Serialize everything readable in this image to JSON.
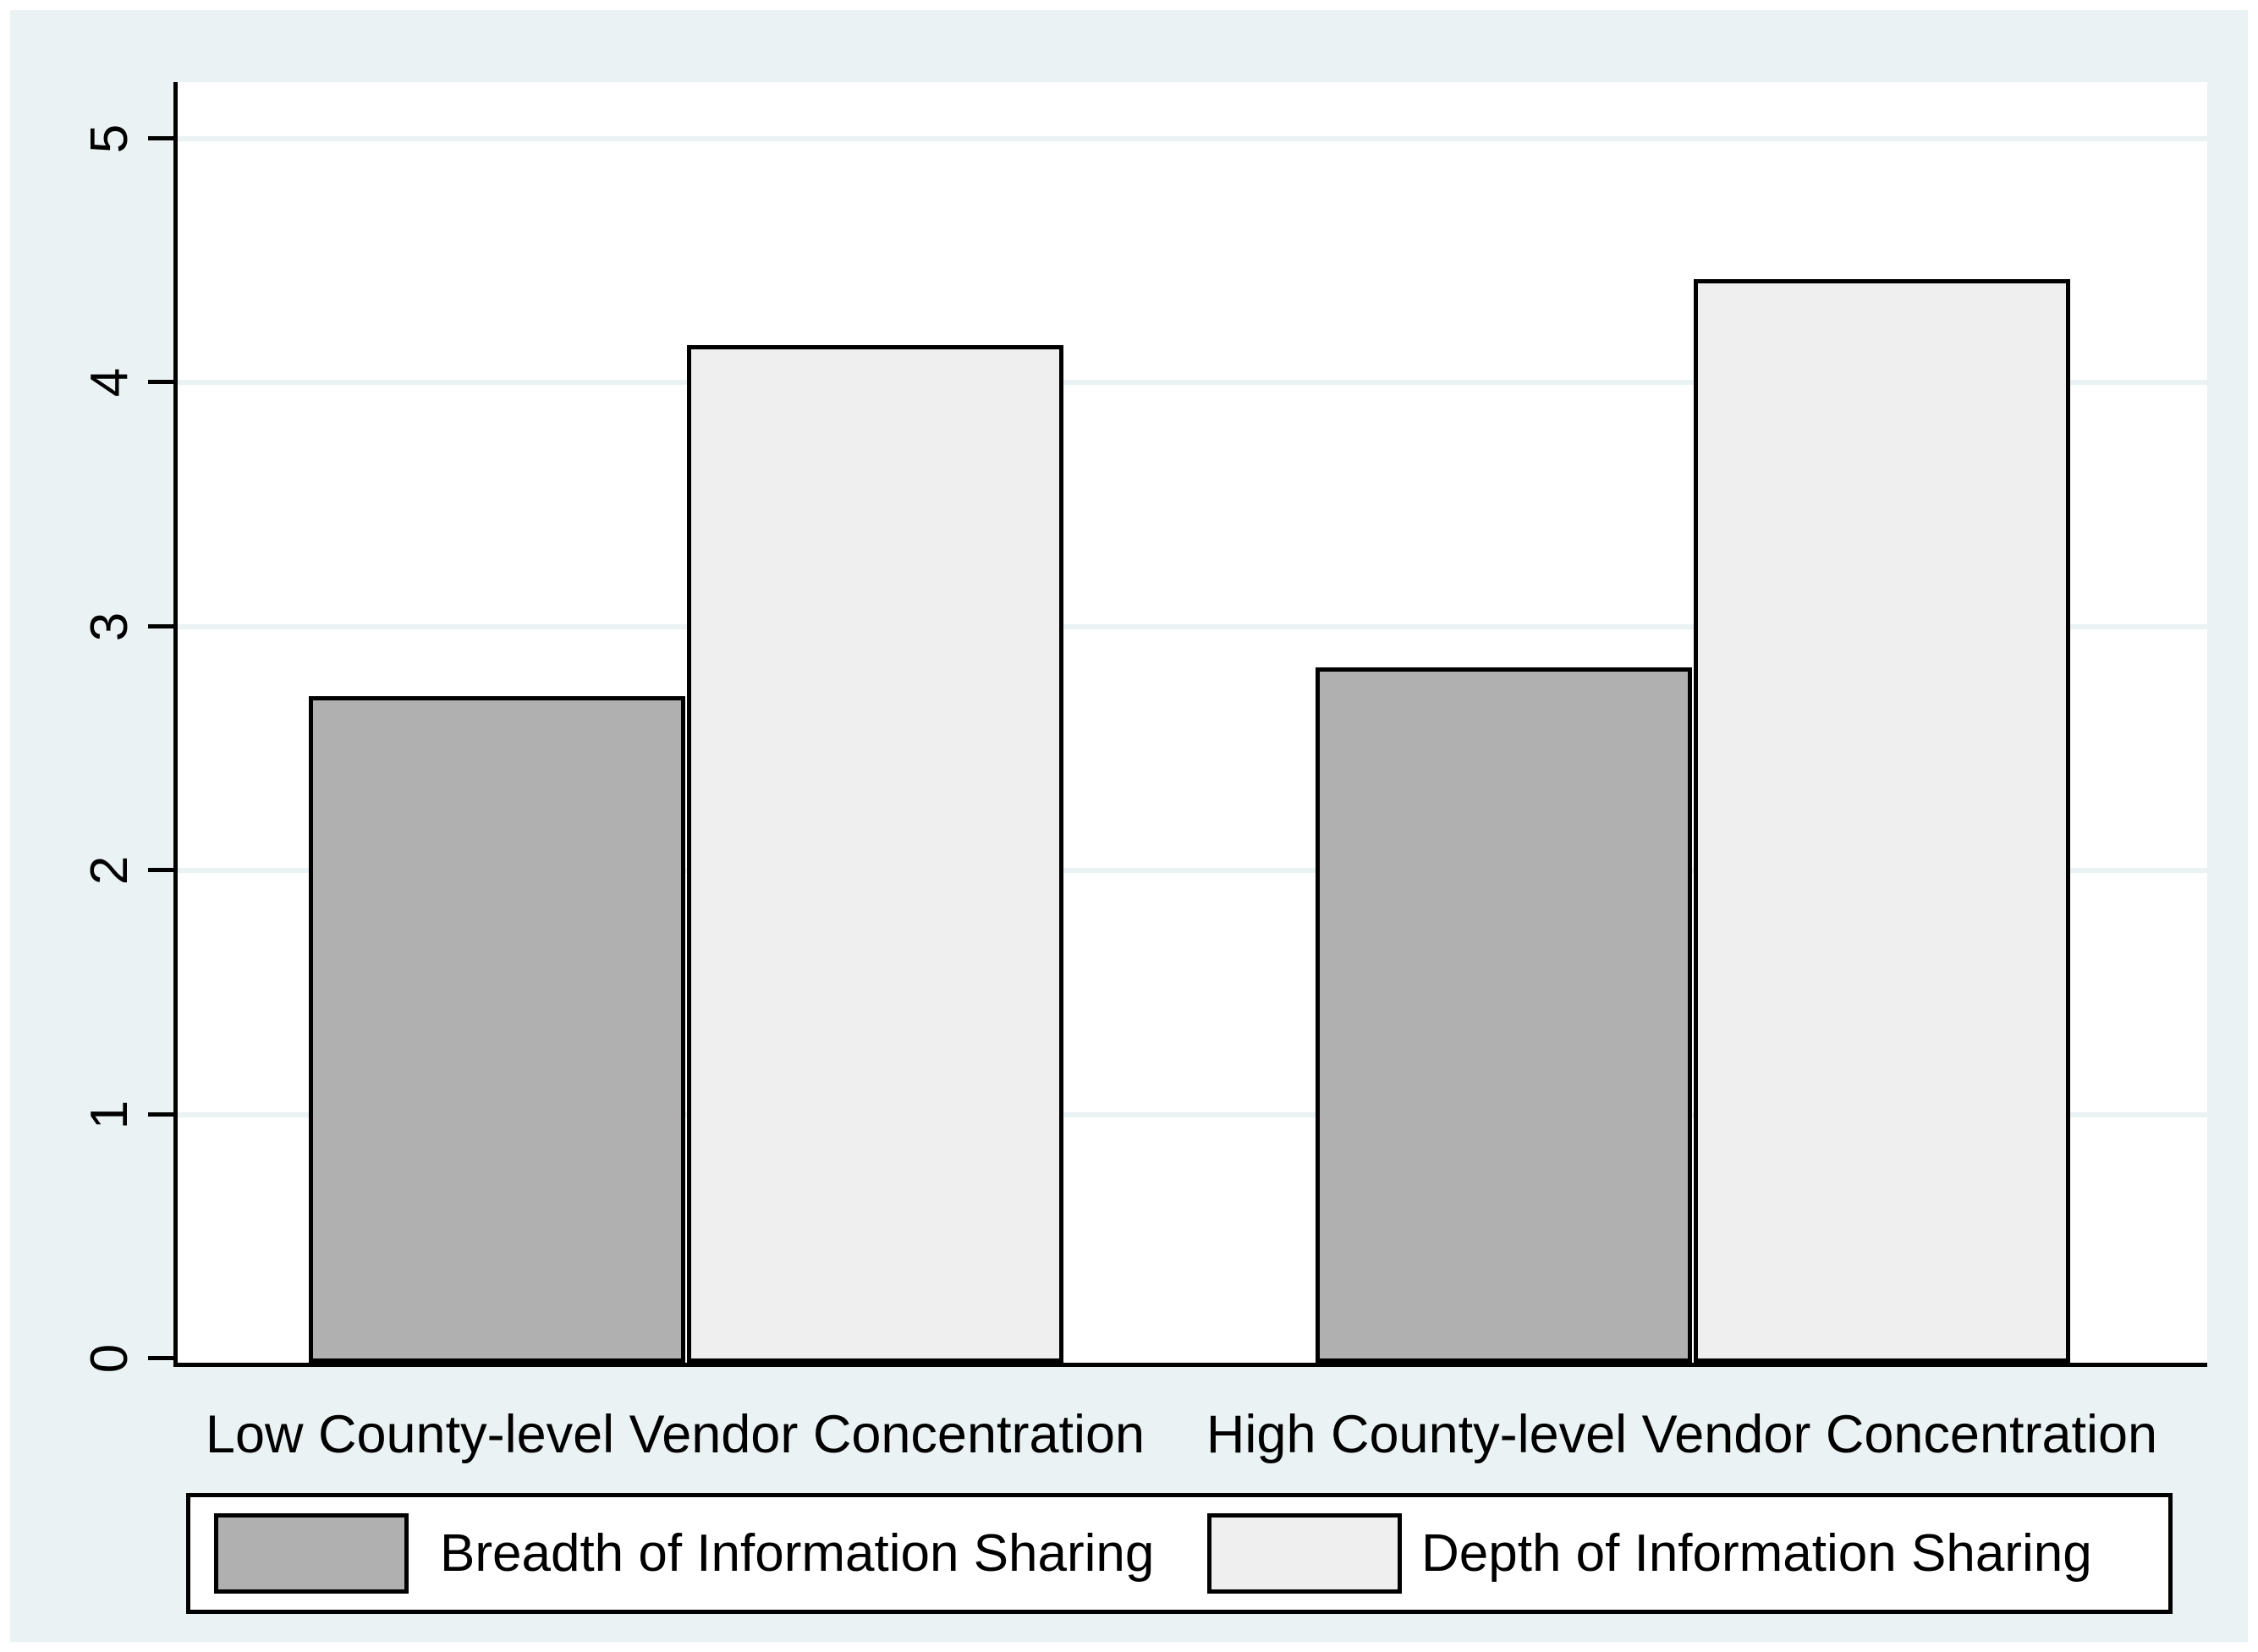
{
  "colors": {
    "outer_background": "#eaf2f3",
    "plot_background": "#ffffff",
    "gridline": "#eaf2f3",
    "axis_line": "#000000",
    "breadth_fill": "#b0b0b0",
    "depth_fill": "#efefef"
  },
  "chart_data": {
    "type": "bar",
    "title": "",
    "categories": [
      "Low County-level Vendor Concentration",
      "High County-level Vendor Concentration"
    ],
    "series": [
      {
        "name": "Breadth of Information Sharing",
        "color": "#b0b0b0",
        "values": [
          2.73,
          2.85
        ]
      },
      {
        "name": "Depth of Information Sharing",
        "color": "#efefef",
        "values": [
          4.17,
          4.44
        ]
      }
    ],
    "ylim": [
      0,
      5
    ],
    "yticks": [
      0,
      1,
      2,
      3,
      4,
      5
    ],
    "ytick_labels": [
      "0",
      "1",
      "2",
      "3",
      "4",
      "5"
    ],
    "xlabel": "",
    "ylabel": "",
    "grid": true,
    "legend_position": "bottom"
  }
}
